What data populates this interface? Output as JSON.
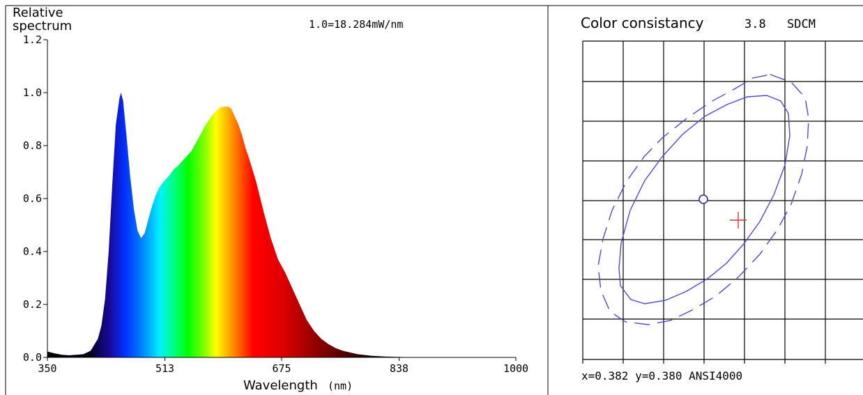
{
  "spectrum": {
    "ylabel_line1": "Relative",
    "ylabel_line2": "spectrum",
    "scale_note": "1.0=18.284mW/nm",
    "xlabel": "Wavelength",
    "xunit": "(nm)"
  },
  "consistency": {
    "title": "Color consistancy",
    "value": "3.8",
    "unit": "SDCM",
    "coords": "x=0.382 y=0.380 ANSI4000",
    "ellipse_color": "#4a4ad4",
    "point_color": "#e0303a"
  },
  "chart_data": [
    {
      "type": "area",
      "title": "",
      "xlabel": "Wavelength (nm)",
      "ylabel": "Relative spectrum",
      "xlim": [
        350,
        1000
      ],
      "ylim": [
        0,
        1.2
      ],
      "x_ticks": [
        "350",
        "513",
        "675",
        "838",
        "1000"
      ],
      "y_ticks": [
        "0.0",
        "0.2",
        "0.4",
        "0.6",
        "0.8",
        "1.0",
        "1.2"
      ],
      "grid": false,
      "fill": "visible-spectrum gradient",
      "series": [
        {
          "x": [
            350,
            360,
            370,
            380,
            390,
            400,
            410,
            420,
            425,
            430,
            435,
            440,
            445,
            450,
            452,
            455,
            460,
            465,
            470,
            475,
            480,
            485,
            490,
            495,
            500,
            505,
            510,
            515,
            520,
            525,
            530,
            540,
            550,
            560,
            570,
            580,
            590,
            600,
            605,
            610,
            615,
            620,
            625,
            630,
            640,
            650,
            660,
            670,
            680,
            690,
            700,
            705,
            710,
            720,
            730,
            740,
            750,
            760,
            780,
            800,
            820,
            850,
            900,
            950,
            1000
          ],
          "y": [
            0.022,
            0.015,
            0.01,
            0.008,
            0.01,
            0.012,
            0.025,
            0.07,
            0.12,
            0.22,
            0.4,
            0.65,
            0.88,
            0.98,
            1.0,
            0.97,
            0.83,
            0.68,
            0.56,
            0.48,
            0.45,
            0.47,
            0.52,
            0.57,
            0.61,
            0.64,
            0.66,
            0.675,
            0.69,
            0.71,
            0.72,
            0.75,
            0.78,
            0.83,
            0.88,
            0.92,
            0.945,
            0.948,
            0.94,
            0.91,
            0.88,
            0.84,
            0.79,
            0.75,
            0.66,
            0.55,
            0.45,
            0.37,
            0.32,
            0.26,
            0.2,
            0.17,
            0.14,
            0.1,
            0.07,
            0.05,
            0.035,
            0.025,
            0.012,
            0.006,
            0.003,
            0.001,
            0.0,
            0.0,
            0.0
          ]
        }
      ]
    },
    {
      "type": "scatter",
      "title": "Color consistancy",
      "grid": true,
      "points": [
        {
          "name": "center",
          "marker": "circle"
        },
        {
          "name": "measured",
          "marker": "cross"
        }
      ],
      "ellipses": [
        {
          "style": "solid"
        },
        {
          "style": "dashed"
        }
      ]
    }
  ]
}
